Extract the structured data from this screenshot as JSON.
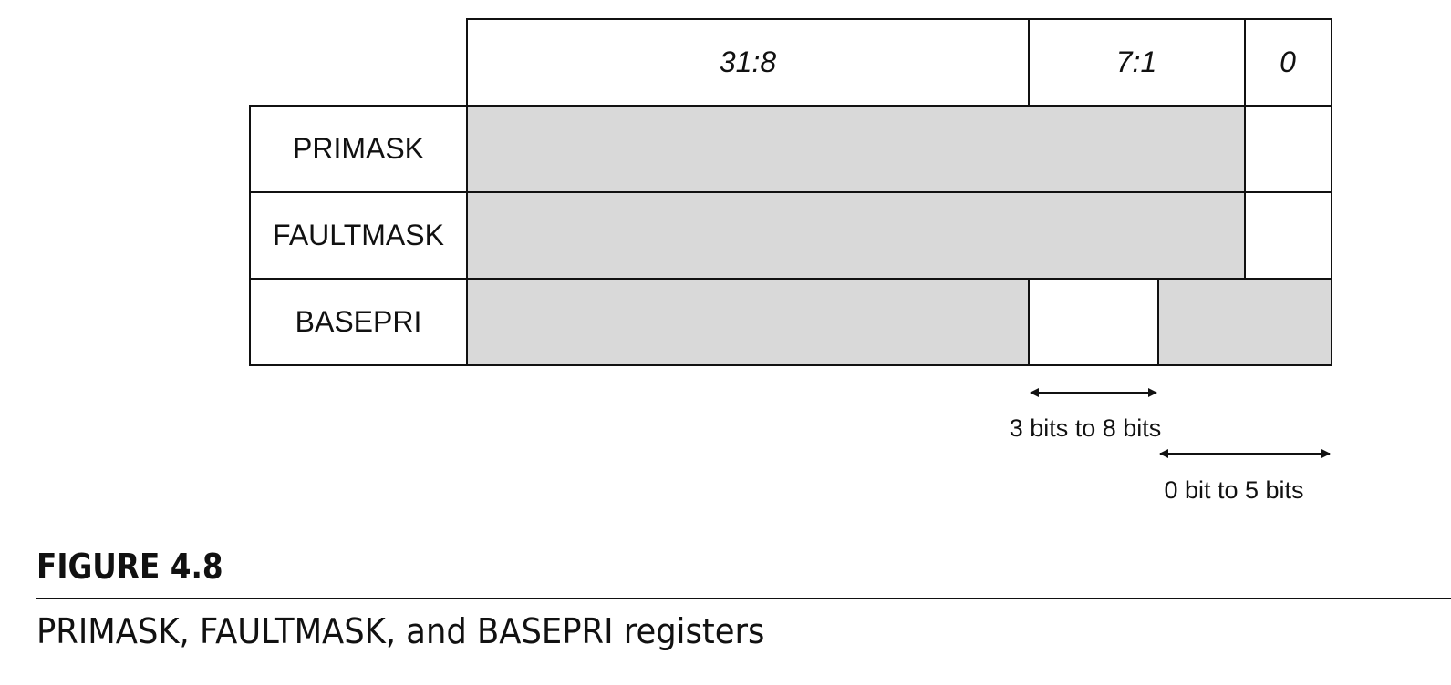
{
  "diagram": {
    "bit_headers": [
      "31:8",
      "7:1",
      "0"
    ],
    "registers": [
      "PRIMASK",
      "FAULTMASK",
      "BASEPRI"
    ],
    "annotations": {
      "basepri_implemented": "3 bits to 8 bits",
      "basepri_unimplemented": "0 bit to 5 bits"
    },
    "colors": {
      "reserved_fill": "#d9d9d9",
      "implemented_fill": "#ffffff",
      "line": "#111111"
    }
  },
  "figure": {
    "number": "FIGURE 4.8",
    "caption": "PRIMASK, FAULTMASK, and BASEPRI registers"
  }
}
